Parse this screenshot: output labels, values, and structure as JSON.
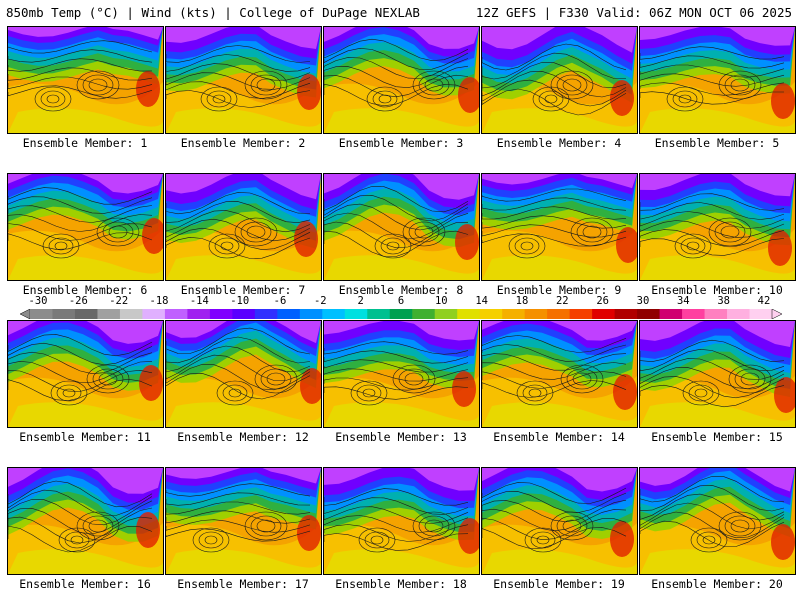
{
  "header": {
    "left": "850mb Temp (°C) | Wind (kts) | College of DuPage NEXLAB",
    "right": "12Z GEFS | F330 Valid: 06Z MON OCT 06 2025"
  },
  "colorbar": {
    "ticks": [
      "-30",
      "-26",
      "-22",
      "-18",
      "-14",
      "-10",
      "-6",
      "-2",
      "2",
      "6",
      "10",
      "14",
      "18",
      "22",
      "26",
      "30",
      "34",
      "38",
      "42"
    ],
    "colors": [
      "#8c8c8c",
      "#7a7a7a",
      "#686868",
      "#a0a0a0",
      "#c8c8c8",
      "#e0b0ff",
      "#c060ff",
      "#a020f0",
      "#8000ff",
      "#5a00ff",
      "#3030ff",
      "#0060ff",
      "#0090ff",
      "#00c0ff",
      "#00e0e0",
      "#00c090",
      "#00a050",
      "#40b030",
      "#90d020",
      "#e0e000",
      "#f5d000",
      "#f5b000",
      "#f59000",
      "#f57000",
      "#f54000",
      "#e00000",
      "#b00000",
      "#900000",
      "#d00070",
      "#ff40a0",
      "#ff80c0",
      "#ffb0e0",
      "#ffd0f0"
    ]
  },
  "members": [
    {
      "label": "Ensemble Member: 1"
    },
    {
      "label": "Ensemble Member: 2"
    },
    {
      "label": "Ensemble Member: 3"
    },
    {
      "label": "Ensemble Member: 4"
    },
    {
      "label": "Ensemble Member: 5"
    },
    {
      "label": "Ensemble Member: 6"
    },
    {
      "label": "Ensemble Member: 7"
    },
    {
      "label": "Ensemble Member: 8"
    },
    {
      "label": "Ensemble Member: 9"
    },
    {
      "label": "Ensemble Member: 10"
    },
    {
      "label": "Ensemble Member: 11"
    },
    {
      "label": "Ensemble Member: 12"
    },
    {
      "label": "Ensemble Member: 13"
    },
    {
      "label": "Ensemble Member: 14"
    },
    {
      "label": "Ensemble Member: 15"
    },
    {
      "label": "Ensemble Member: 16"
    },
    {
      "label": "Ensemble Member: 17"
    },
    {
      "label": "Ensemble Member: 18"
    },
    {
      "label": "Ensemble Member: 19"
    },
    {
      "label": "Ensemble Member: 20"
    }
  ]
}
